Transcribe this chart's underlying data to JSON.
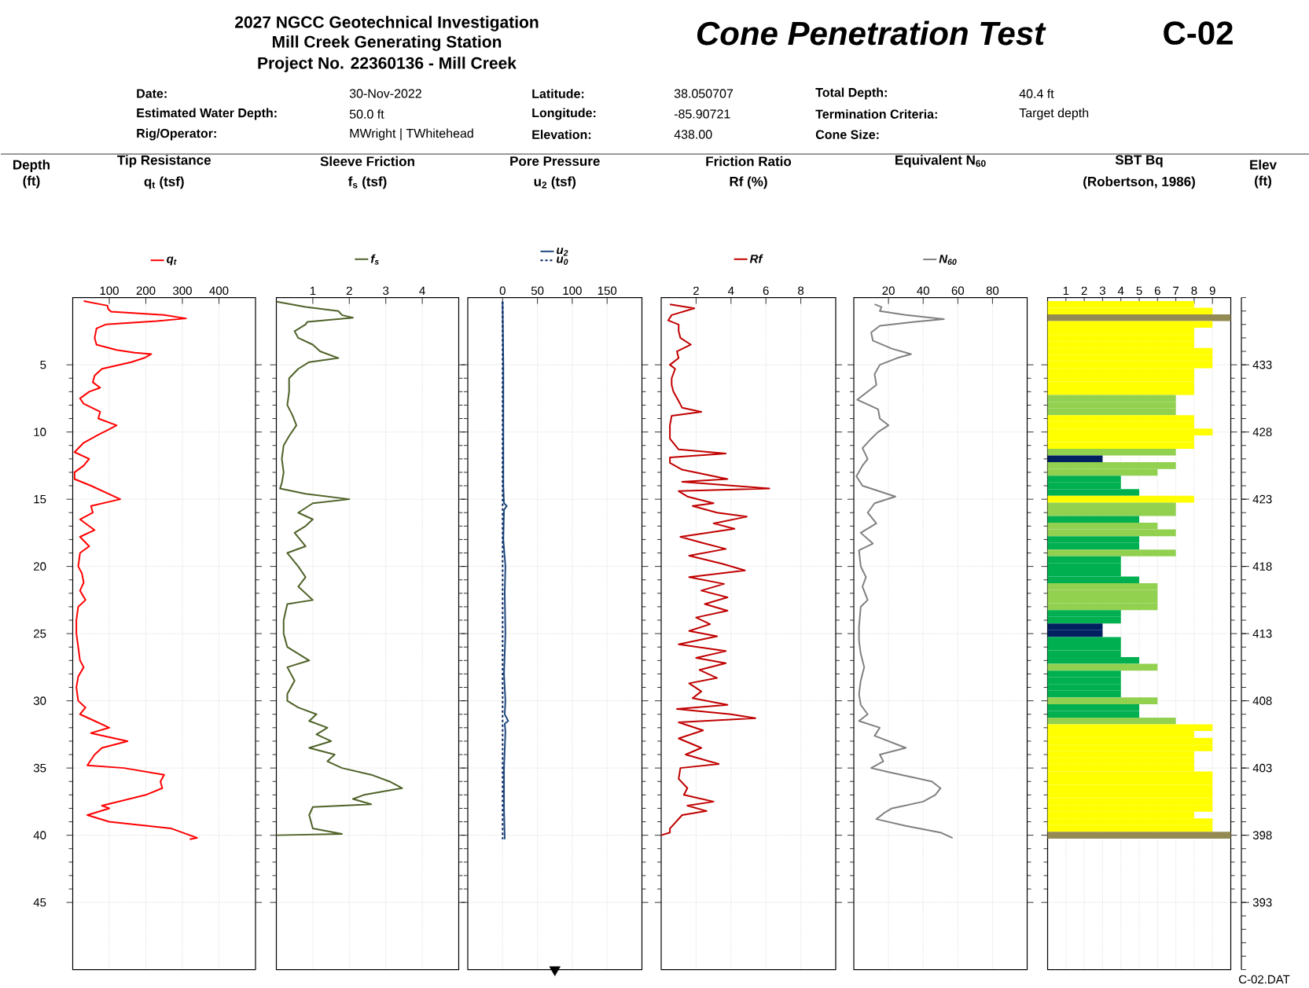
{
  "chart_data": [
    {
      "type": "line",
      "title": "Tip Resistance",
      "xlabel": "q$_{t}$ (tsf)",
      "ylabel": "Depth (ft)",
      "xlim": [
        0,
        500
      ],
      "xticks": [
        100,
        200,
        300,
        400
      ],
      "ylim": [
        50,
        0
      ],
      "yticks": [
        5,
        10,
        15,
        20,
        25,
        30,
        35,
        40,
        45
      ],
      "grid": true,
      "legend": "top",
      "series": [
        {
          "name": "q$_{t}$",
          "color": "#ff0000",
          "x": [
            30,
            95,
            97,
            105,
            250,
            310,
            230,
            90,
            65,
            60,
            65,
            120,
            170,
            215,
            195,
            160,
            80,
            60,
            55,
            75,
            45,
            20,
            30,
            75,
            70,
            120,
            100,
            70,
            30,
            5,
            45,
            30,
            5,
            5,
            50,
            130,
            50,
            55,
            20,
            60,
            20,
            45,
            20,
            15,
            25,
            30,
            20,
            35,
            15,
            10,
            10,
            15,
            20,
            30,
            15,
            10,
            15,
            35,
            20,
            60,
            100,
            50,
            150,
            80,
            60,
            40,
            140,
            250,
            240,
            245,
            200,
            80,
            100,
            40,
            100,
            270,
            310,
            340,
            320
          ],
          "values": [
            0.25,
            0.6,
            0.85,
            1.05,
            1.3,
            1.55,
            1.75,
            2.0,
            2.3,
            3.0,
            3.5,
            3.9,
            4.1,
            4.2,
            4.5,
            4.8,
            5.3,
            5.8,
            6.3,
            6.7,
            7.0,
            7.5,
            7.9,
            8.5,
            9.0,
            9.5,
            9.8,
            10.2,
            10.8,
            11.5,
            12.0,
            12.5,
            13.0,
            13.5,
            14.0,
            15.0,
            15.5,
            16.0,
            16.5,
            17.3,
            17.8,
            18.5,
            19.0,
            20.0,
            20.5,
            21.2,
            21.8,
            22.5,
            23.0,
            24.0,
            25.0,
            26.0,
            27.0,
            27.5,
            28.2,
            29.0,
            30.0,
            30.5,
            31.0,
            31.5,
            32.0,
            32.4,
            33.0,
            33.5,
            34.0,
            34.8,
            35.0,
            35.5,
            36.0,
            36.5,
            37.0,
            37.8,
            38.0,
            38.5,
            39.0,
            39.5,
            39.9,
            40.2,
            40.3
          ]
        }
      ]
    },
    {
      "type": "line",
      "title": "Sleeve Friction",
      "xlabel": "f$_{s}$ (tsf)",
      "xlim": [
        0,
        5
      ],
      "xticks": [
        1,
        2,
        3,
        4
      ],
      "ylim": [
        50,
        0
      ],
      "yticks": [
        5,
        10,
        15,
        20,
        25,
        30,
        35,
        40,
        45
      ],
      "grid": true,
      "legend": "top",
      "tick_labels": "x",
      "series": [
        {
          "name": "f$_{s}$",
          "color": "#4f6228",
          "x": [
            0,
            0.8,
            1.7,
            1.8,
            2.1,
            0.85,
            0.8,
            0.5,
            0.6,
            1.0,
            1.2,
            1.7,
            0.9,
            0.6,
            0.35,
            0.35,
            0.3,
            0.45,
            0.55,
            0.35,
            0.2,
            0.15,
            0.2,
            0.15,
            0.1,
            0.8,
            2.0,
            1.0,
            0.6,
            1.0,
            0.8,
            0.5,
            0.8,
            0.3,
            0.6,
            0.8,
            0.6,
            1.0,
            0.3,
            0.2,
            0.2,
            0.3,
            0.9,
            0.3,
            0.5,
            0.3,
            0.3,
            0.6,
            1.1,
            0.9,
            1.4,
            1.1,
            1.5,
            0.9,
            1.6,
            1.4,
            1.8,
            2.6,
            3.1,
            3.45,
            2.4,
            2.1,
            2.6,
            1.0,
            0.9,
            1.0,
            1.8,
            0
          ],
          "values": [
            0.3,
            0.7,
            1.0,
            1.3,
            1.5,
            1.8,
            2.0,
            2.5,
            3.0,
            3.5,
            4.0,
            4.5,
            4.8,
            5.3,
            6.0,
            7.0,
            8.0,
            8.8,
            9.5,
            10.3,
            11.0,
            12.0,
            13.0,
            13.8,
            14.2,
            14.6,
            15.0,
            15.3,
            16.0,
            16.5,
            17.0,
            17.5,
            18.5,
            19.0,
            20.0,
            20.8,
            21.5,
            22.5,
            22.8,
            24.0,
            25.0,
            26.0,
            27.0,
            27.5,
            28.5,
            29.5,
            30.0,
            30.5,
            31.0,
            31.5,
            32.0,
            32.5,
            33.0,
            33.5,
            34.0,
            34.5,
            35.0,
            35.5,
            36.0,
            36.5,
            37.0,
            37.3,
            37.7,
            37.9,
            38.5,
            39.5,
            39.9,
            40.0
          ]
        }
      ]
    },
    {
      "type": "line",
      "title": "Pore Pressure",
      "xlabel": "u$_{2}$ (tsf)",
      "xlim": [
        -50,
        200
      ],
      "xticks": [
        0,
        50,
        100,
        150
      ],
      "ylim": [
        50,
        0
      ],
      "yticks": [
        5,
        10,
        15,
        20,
        25,
        30,
        35,
        40,
        45
      ],
      "grid": true,
      "legend": "top",
      "tick_labels": "x",
      "series": [
        {
          "type": "scatter",
          "marker": "triangle",
          "color": "#000000",
          "x": [
            75
          ],
          "values": [
            50
          ]
        },
        {
          "name": "u$_{2}$",
          "color": "#1f497d",
          "x": [
            0,
            1,
            1,
            2,
            6,
            2,
            1,
            4,
            3,
            4,
            2,
            4,
            3,
            8,
            3,
            4,
            2,
            2,
            3
          ],
          "values": [
            0.3,
            5,
            14,
            15.3,
            15.5,
            15.8,
            18,
            20,
            22,
            25,
            28,
            30,
            31,
            31.5,
            31.7,
            32.3,
            35,
            38,
            40.3
          ]
        },
        {
          "name": "u$_{0}$",
          "color": "#002060",
          "line_style": "dashed",
          "x": [
            0,
            0
          ],
          "values": [
            0.3,
            40.3
          ]
        }
      ]
    },
    {
      "type": "line",
      "title": "Friction Ratio",
      "xlabel": "Rf (%)",
      "xlim": [
        0,
        10
      ],
      "xticks": [
        2,
        4,
        6,
        8
      ],
      "ylim": [
        50,
        0
      ],
      "yticks": [
        5,
        10,
        15,
        20,
        25,
        30,
        35,
        40,
        45
      ],
      "grid": true,
      "legend": "top",
      "tick_labels": "x",
      "series": [
        {
          "name": "Rf",
          "color": "#c00000",
          "x": [
            0.5,
            1.9,
            0.6,
            0.4,
            1.0,
            1.0,
            1.1,
            1.7,
            0.9,
            1.0,
            0.5,
            0.8,
            0.6,
            0.6,
            0.7,
            1.0,
            1.2,
            2.3,
            0.6,
            0.5,
            0.5,
            1.0,
            3.7,
            0.5,
            0.5,
            1.2,
            3.8,
            1.2,
            6.2,
            1.0,
            1.5,
            3.0,
            1.8,
            3.2,
            4.9,
            3.0,
            4.2,
            1.1,
            2.5,
            3.7,
            1.6,
            3.5,
            4.8,
            1.6,
            3.6,
            2.3,
            3.8,
            2.5,
            3.8,
            2.0,
            2.8,
            1.6,
            3.2,
            1.0,
            3.7,
            2.0,
            3.7,
            2.2,
            3.2,
            1.6,
            2.3,
            1.8,
            3.8,
            0.9,
            4.0,
            5.4,
            1.0,
            2.4,
            1.0,
            2.3,
            1.4,
            3.3,
            1.1,
            1.0,
            1.5,
            1.3,
            3.0,
            1.5,
            2.6,
            1.2,
            0.5,
            0.5,
            0
          ],
          "values": [
            0.5,
            0.8,
            1.3,
            1.7,
            2.0,
            2.5,
            3.0,
            3.5,
            4.0,
            4.5,
            5.0,
            5.3,
            6.0,
            6.5,
            7.0,
            7.7,
            8.2,
            8.5,
            8.8,
            9.5,
            10.5,
            11.3,
            11.6,
            11.9,
            12.3,
            12.8,
            13.5,
            13.7,
            14.2,
            14.4,
            14.8,
            15.3,
            15.5,
            16.0,
            16.3,
            16.8,
            17.2,
            17.8,
            18.3,
            18.7,
            19.2,
            19.8,
            20.3,
            20.8,
            21.3,
            21.8,
            22.3,
            22.8,
            23.3,
            23.8,
            24.3,
            24.8,
            25.2,
            25.8,
            26.3,
            26.8,
            27.2,
            27.7,
            28.3,
            28.7,
            29.3,
            29.8,
            30.3,
            30.6,
            31.0,
            31.3,
            31.6,
            32.2,
            32.8,
            33.5,
            34.0,
            34.7,
            35.0,
            35.8,
            36.5,
            37.0,
            37.5,
            37.8,
            38.2,
            38.5,
            39.5,
            39.8,
            40.0
          ]
        }
      ]
    },
    {
      "type": "line",
      "title": "Equivalent N$_{60}$",
      "xlim": [
        0,
        100
      ],
      "xticks": [
        20,
        40,
        60,
        80
      ],
      "ylim": [
        50,
        0
      ],
      "yticks": [
        5,
        10,
        15,
        20,
        25,
        30,
        35,
        40,
        45
      ],
      "grid": true,
      "legend": "top",
      "tick_labels": "x",
      "series": [
        {
          "name": "N$_{60}$",
          "color": "#808080",
          "x": [
            12,
            16,
            15,
            30,
            52,
            35,
            15,
            10,
            11,
            22,
            33,
            25,
            15,
            12,
            13,
            8,
            2,
            14,
            15,
            20,
            14,
            10,
            5,
            8,
            5,
            1.5,
            5,
            24,
            12,
            8,
            13,
            4,
            11,
            3,
            4,
            7,
            5,
            8,
            4,
            3,
            3,
            4,
            6,
            4,
            3,
            4,
            8,
            3,
            15,
            12,
            30,
            15,
            17,
            10,
            20,
            45,
            50,
            47,
            40,
            22,
            18,
            13,
            30,
            50,
            57
          ],
          "values": [
            0.5,
            0.7,
            1.0,
            1.3,
            1.6,
            1.8,
            2.1,
            2.6,
            3.2,
            3.8,
            4.2,
            4.5,
            5.0,
            5.7,
            6.5,
            7.0,
            7.6,
            8.3,
            9.0,
            9.5,
            10.0,
            10.5,
            11.2,
            12.0,
            12.5,
            13.3,
            14.0,
            14.8,
            15.3,
            16.0,
            16.8,
            17.5,
            18.3,
            18.8,
            20.0,
            20.8,
            21.5,
            22.5,
            23.0,
            24.5,
            25.5,
            26.5,
            27.5,
            28.5,
            29.5,
            30.3,
            31.0,
            31.5,
            32.0,
            32.6,
            33.5,
            34.0,
            34.5,
            35.0,
            35.3,
            36.0,
            36.5,
            37.0,
            37.5,
            38.0,
            38.3,
            38.8,
            39.3,
            39.8,
            40.2
          ]
        }
      ]
    },
    {
      "type": "bar",
      "orientation": "horizontal",
      "title": "SBT Bq",
      "xlabel": "(Robertson, 1986)",
      "xlim": [
        0,
        10
      ],
      "xticks": [
        1,
        2,
        3,
        4,
        5,
        6,
        7,
        8,
        9
      ],
      "ylim": [
        50,
        0
      ],
      "yticks": [
        5,
        10,
        15,
        20,
        25,
        30,
        35,
        40,
        45
      ],
      "grid": true,
      "tick_labels": "x",
      "y2label": "Elev (ft)",
      "y2lim": [
        388,
        438
      ],
      "y2ticks": [
        {
          "value": 393,
          "label": "393"
        },
        {
          "value": 398,
          "label": "398"
        },
        {
          "value": 403,
          "label": "403"
        },
        {
          "value": 408,
          "label": "408"
        },
        {
          "value": 413,
          "label": "413"
        },
        {
          "value": 418,
          "label": "418"
        },
        {
          "value": 423,
          "label": "423"
        },
        {
          "value": 428,
          "label": "428"
        },
        {
          "value": 433,
          "label": "433"
        }
      ],
      "x": [
        0.5,
        1.0,
        1.5,
        2.0,
        2.5,
        3.0,
        3.5,
        4.0,
        4.5,
        5.0,
        5.5,
        6.0,
        6.5,
        7.0,
        7.5,
        8.0,
        8.5,
        9.0,
        9.5,
        10.0,
        10.5,
        11.0,
        11.5,
        12.0,
        12.5,
        13.0,
        13.5,
        14.0,
        14.5,
        15.0,
        15.5,
        16.0,
        16.5,
        17.0,
        17.5,
        18.0,
        18.5,
        19.0,
        19.5,
        20.0,
        20.5,
        21.0,
        21.5,
        22.0,
        22.5,
        23.0,
        23.5,
        24.0,
        24.5,
        25.0,
        25.5,
        26.0,
        26.5,
        27.0,
        27.5,
        28.0,
        28.5,
        29.0,
        29.5,
        30.0,
        30.5,
        31.0,
        31.5,
        32.0,
        32.5,
        33.0,
        33.5,
        34.0,
        34.5,
        35.0,
        35.5,
        36.0,
        36.5,
        37.0,
        37.5,
        38.0,
        38.5,
        39.0,
        39.5,
        40.0
      ],
      "values": [
        8,
        9,
        10,
        9,
        8,
        8,
        8,
        9,
        9,
        9,
        8,
        8,
        8,
        8,
        7,
        7,
        7,
        8,
        8,
        9,
        8,
        8,
        7,
        3,
        7,
        6,
        4,
        4,
        5,
        8,
        7,
        7,
        5,
        6,
        7,
        5,
        5,
        7,
        4,
        4,
        4,
        5,
        6,
        6,
        6,
        6,
        4,
        4,
        3,
        3,
        4,
        4,
        4,
        5,
        6,
        4,
        4,
        4,
        4,
        6,
        5,
        5,
        7,
        9,
        8,
        9,
        9,
        8,
        8,
        8,
        9,
        9,
        9,
        9,
        9,
        9,
        8,
        9,
        9,
        10
      ],
      "colors": [
        "#ffff00",
        "#ffff00",
        "#948a54",
        "#ffff00",
        "#ffff00",
        "#ffff00",
        "#ffff00",
        "#ffff00",
        "#ffff00",
        "#ffff00",
        "#ffff00",
        "#ffff00",
        "#ffff00",
        "#ffff00",
        "#92d050",
        "#92d050",
        "#92d050",
        "#ffff00",
        "#ffff00",
        "#ffff00",
        "#ffff00",
        "#ffff00",
        "#92d050",
        "#002060",
        "#92d050",
        "#92d050",
        "#00b050",
        "#00b050",
        "#00b050",
        "#ffff00",
        "#92d050",
        "#92d050",
        "#00b050",
        "#92d050",
        "#92d050",
        "#00b050",
        "#00b050",
        "#92d050",
        "#00b050",
        "#00b050",
        "#00b050",
        "#00b050",
        "#92d050",
        "#92d050",
        "#92d050",
        "#92d050",
        "#00b050",
        "#00b050",
        "#002060",
        "#002060",
        "#00b050",
        "#00b050",
        "#00b050",
        "#00b050",
        "#92d050",
        "#00b050",
        "#00b050",
        "#00b050",
        "#00b050",
        "#92d050",
        "#00b050",
        "#00b050",
        "#92d050",
        "#ffff00",
        "#ffff00",
        "#ffff00",
        "#ffff00",
        "#ffff00",
        "#ffff00",
        "#ffff00",
        "#ffff00",
        "#ffff00",
        "#ffff00",
        "#ffff00",
        "#ffff00",
        "#ffff00",
        "#ffff00",
        "#ffff00",
        "#ffff00",
        "#948a54"
      ]
    },
    {
      "type": "other",
      "title": "Cone Penetration Test",
      "subtitle": "C-02",
      "annotations": [
        "2027 NGCC Geotechnical Investigation",
        "Mill Creek Generating Station",
        "Project No. 22360136 - Mill Creek",
        "Date:",
        "30-Nov-2022",
        "Estimated Water Depth:",
        "50.0 ft",
        "Rig/Operator:",
        "MWright | TWhitehead",
        "Latitude:",
        "38.050707",
        "Longitude:",
        "-85.90721",
        "Elevation:",
        "438.00",
        "Total Depth:",
        "40.4 ft",
        "Termination Criteria:",
        "Target depth",
        "Cone Size:",
        "C-02.DAT"
      ]
    }
  ]
}
